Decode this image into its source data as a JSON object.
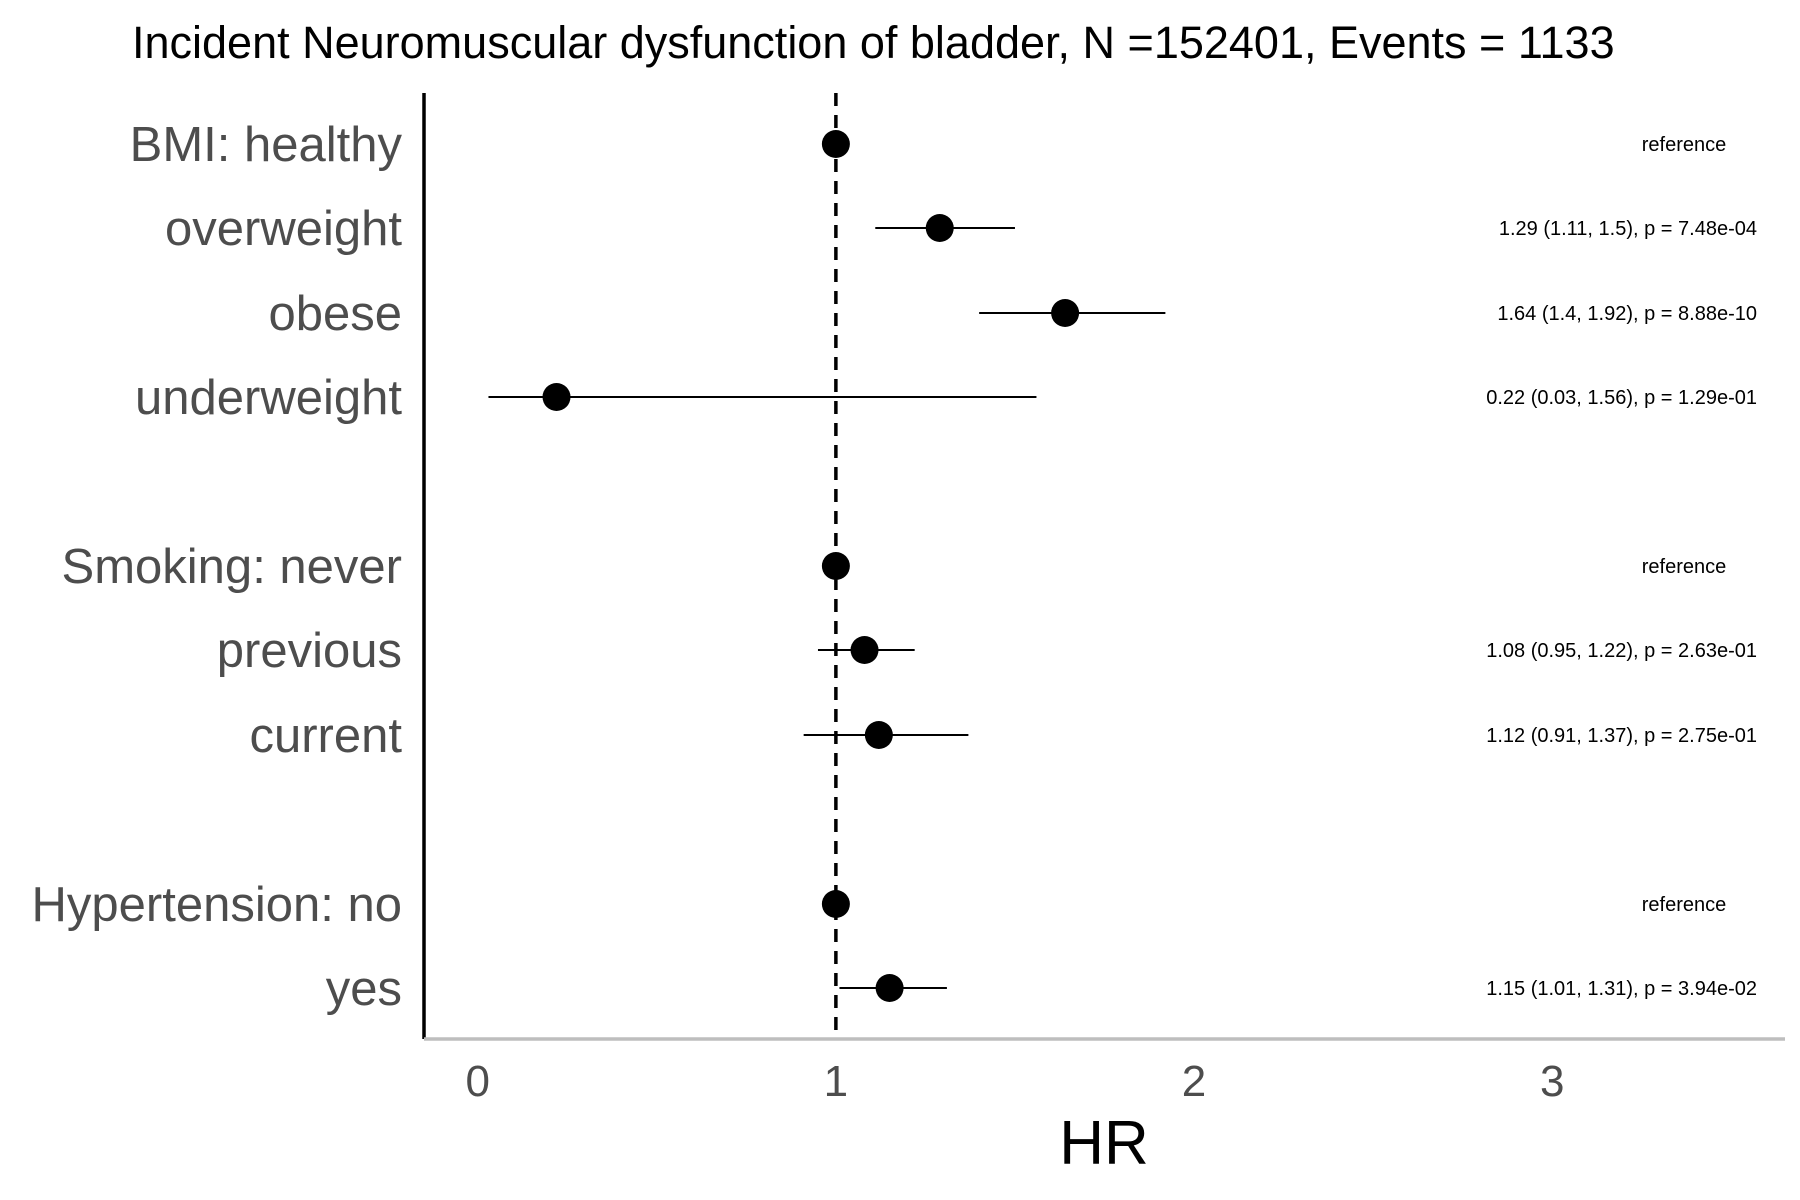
{
  "chart_data": {
    "type": "forest",
    "title": "Incident Neuromuscular dysfunction of bladder, N =152401, Events = 1133",
    "xlabel": "HR",
    "xlim": [
      -0.15,
      3.65
    ],
    "xticks": [
      0,
      1,
      2,
      3
    ],
    "reference_line": 1,
    "rows": [
      {
        "label": "BMI: healthy",
        "hr": 1,
        "lower": null,
        "upper": null,
        "annotation": "reference"
      },
      {
        "label": "overweight",
        "hr": 1.29,
        "lower": 1.11,
        "upper": 1.5,
        "annotation": "1.29 (1.11, 1.5), p = 7.48e-04"
      },
      {
        "label": "obese",
        "hr": 1.64,
        "lower": 1.4,
        "upper": 1.92,
        "annotation": "1.64 (1.4, 1.92), p = 8.88e-10"
      },
      {
        "label": "underweight",
        "hr": 0.22,
        "lower": 0.03,
        "upper": 1.56,
        "annotation": "0.22 (0.03, 1.56), p = 1.29e-01"
      },
      {
        "label": "Smoking: never",
        "hr": 1,
        "lower": null,
        "upper": null,
        "annotation": "reference"
      },
      {
        "label": "previous",
        "hr": 1.08,
        "lower": 0.95,
        "upper": 1.22,
        "annotation": "1.08 (0.95, 1.22), p = 2.63e-01"
      },
      {
        "label": "current",
        "hr": 1.12,
        "lower": 0.91,
        "upper": 1.37,
        "annotation": "1.12 (0.91, 1.37), p = 2.75e-01"
      },
      {
        "label": "Hypertension: no",
        "hr": 1,
        "lower": null,
        "upper": null,
        "annotation": "reference"
      },
      {
        "label": "yes",
        "hr": 1.15,
        "lower": 1.01,
        "upper": 1.31,
        "annotation": "1.15 (1.01, 1.31), p = 3.94e-02"
      }
    ],
    "colors": {
      "point": "#000000",
      "label": "#4d4d4d",
      "x_axis": "#bebebe"
    }
  }
}
